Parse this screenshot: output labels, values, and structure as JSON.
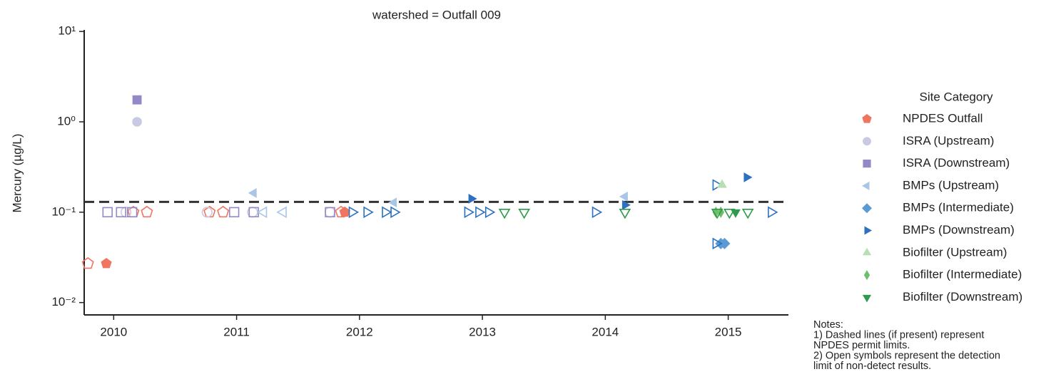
{
  "chart_data": {
    "type": "scatter",
    "title": "watershed = Outfall 009",
    "y_label": "Mercury (µg/L)",
    "yscale": "log",
    "xlim": [
      2009.76,
      2015.49
    ],
    "ylim": [
      0.0073,
      10.4
    ],
    "xticks": [
      2010,
      2011,
      2012,
      2013,
      2014,
      2015
    ],
    "yticks": [
      {
        "value": 10,
        "label": "10¹"
      },
      {
        "value": 1,
        "label": "10⁰"
      },
      {
        "value": 0.1,
        "label": "10⁻¹"
      },
      {
        "value": 0.01,
        "label": "10⁻²"
      }
    ],
    "permit_limit": 0.13,
    "legend_title": "Site Category",
    "legend_position": "right",
    "notes": [
      "Notes:",
      "1) Dashed lines (if present) represent",
      "NPDES permit limits.",
      "2) Open symbols represent the detection",
      "limit of non-detect results."
    ],
    "series": [
      {
        "name": "NPDES Outfall",
        "color": "#f07560",
        "marker": "pentagon",
        "x": [
          2009.79,
          2009.94,
          2010.16,
          2010.27,
          2010.78,
          2010.89,
          2011.85,
          2011.88
        ],
        "values": [
          0.027,
          0.027,
          0.1,
          0.1,
          0.1,
          0.1,
          0.1,
          0.1
        ],
        "open": [
          true,
          false,
          true,
          true,
          true,
          true,
          true,
          false
        ]
      },
      {
        "name": "ISRA (Upstream)",
        "color": "#c9c9e4",
        "marker": "circle",
        "x": [
          2010.19,
          2010.1,
          2010.76,
          2011.13,
          2011.76
        ],
        "values": [
          1.0,
          0.1,
          0.1,
          0.1,
          0.1
        ],
        "open": [
          false,
          true,
          true,
          true,
          true
        ]
      },
      {
        "name": "ISRA (Downstream)",
        "color": "#9488c6",
        "marker": "square",
        "x": [
          2010.19,
          2009.95,
          2010.06,
          2010.15,
          2010.98,
          2011.14,
          2011.76
        ],
        "values": [
          1.75,
          0.1,
          0.1,
          0.1,
          0.1,
          0.1,
          0.1
        ],
        "open": [
          false,
          true,
          true,
          true,
          true,
          true,
          true
        ]
      },
      {
        "name": "BMPs (Upstream)",
        "color": "#a9c6e6",
        "marker": "triangle-left",
        "x": [
          2011.14,
          2011.22,
          2011.38,
          2012.28,
          2014.16
        ],
        "values": [
          0.163,
          0.1,
          0.1,
          0.128,
          0.149
        ],
        "open": [
          false,
          true,
          true,
          false,
          false
        ]
      },
      {
        "name": "BMPs (Intermediate)",
        "color": "#5b9bd5",
        "marker": "diamond",
        "x": [
          2014.94,
          2014.97
        ],
        "values": [
          0.045,
          0.045
        ],
        "open": [
          false,
          false
        ]
      },
      {
        "name": "BMPs (Downstream)",
        "color": "#2b71bf",
        "marker": "triangle-right",
        "x": [
          2012.91,
          2015.15,
          2014.16,
          2011.94,
          2012.06,
          2012.21,
          2012.28,
          2012.88,
          2012.97,
          2013.05,
          2013.92,
          2014.9,
          2014.9,
          2015.35
        ],
        "values": [
          0.141,
          0.243,
          0.12,
          0.1,
          0.1,
          0.1,
          0.1,
          0.1,
          0.1,
          0.1,
          0.1,
          0.2,
          0.045,
          0.1
        ],
        "open": [
          false,
          false,
          false,
          true,
          true,
          true,
          true,
          true,
          true,
          true,
          true,
          true,
          true,
          true
        ]
      },
      {
        "name": "Biofilter (Upstream)",
        "color": "#b6e0b3",
        "marker": "triangle-up",
        "x": [
          2014.95
        ],
        "values": [
          0.2
        ],
        "open": [
          false
        ]
      },
      {
        "name": "Biofilter (Intermediate)",
        "color": "#6dbf6b",
        "marker": "thin-diamond",
        "x": [
          2014.9,
          2014.94
        ],
        "values": [
          0.1,
          0.1
        ],
        "open": [
          false,
          false
        ]
      },
      {
        "name": "Biofilter (Downstream)",
        "color": "#2e9a4b",
        "marker": "triangle-down",
        "x": [
          2013.18,
          2013.34,
          2014.16,
          2014.91,
          2015.01,
          2015.06,
          2015.16
        ],
        "values": [
          0.1,
          0.1,
          0.1,
          0.1,
          0.1,
          0.1,
          0.1
        ],
        "open": [
          true,
          true,
          true,
          true,
          true,
          false,
          true
        ]
      }
    ]
  }
}
